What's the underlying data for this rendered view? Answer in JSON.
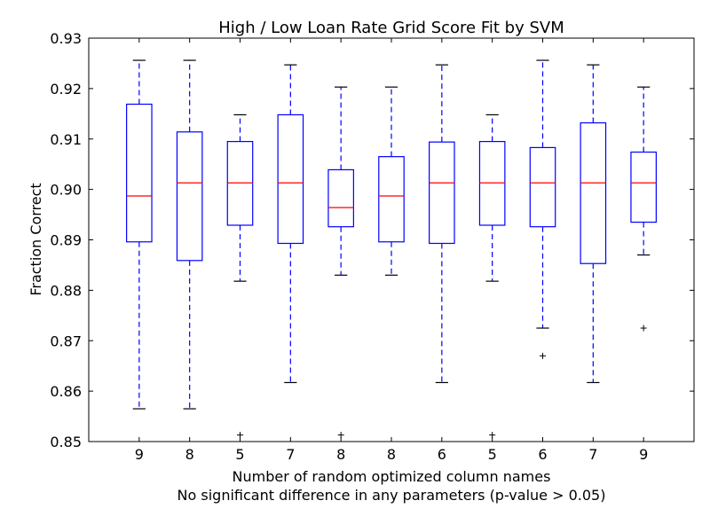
{
  "chart_data": {
    "type": "box",
    "title": "High / Low Loan Rate Grid Score Fit by SVM",
    "xlabel": "Number of random optimized column names",
    "xlabel2": "No significant difference in any parameters (p-value > 0.05)",
    "ylabel": "Fraction Correct",
    "ylim": [
      0.85,
      0.93
    ],
    "yticks": [
      "0.85",
      "0.86",
      "0.87",
      "0.88",
      "0.89",
      "0.90",
      "0.91",
      "0.92",
      "0.93"
    ],
    "categories": [
      "9",
      "8",
      "5",
      "7",
      "8",
      "8",
      "6",
      "5",
      "6",
      "7",
      "9"
    ],
    "boxes": [
      {
        "whislo": 0.8565,
        "q1": 0.8896,
        "med": 0.8987,
        "q3": 0.9169,
        "whishi": 0.9256,
        "fliers": []
      },
      {
        "whislo": 0.8565,
        "q1": 0.8859,
        "med": 0.9013,
        "q3": 0.9114,
        "whishi": 0.9256,
        "fliers": []
      },
      {
        "whislo": 0.8818,
        "q1": 0.8929,
        "med": 0.9013,
        "q3": 0.9095,
        "whishi": 0.9148,
        "fliers": [
          0.8513
        ]
      },
      {
        "whislo": 0.8617,
        "q1": 0.8893,
        "med": 0.9013,
        "q3": 0.9148,
        "whishi": 0.9247,
        "fliers": []
      },
      {
        "whislo": 0.883,
        "q1": 0.8926,
        "med": 0.8964,
        "q3": 0.9039,
        "whishi": 0.9203,
        "fliers": [
          0.8513
        ]
      },
      {
        "whislo": 0.883,
        "q1": 0.8896,
        "med": 0.8987,
        "q3": 0.9065,
        "whishi": 0.9203,
        "fliers": []
      },
      {
        "whislo": 0.8617,
        "q1": 0.8893,
        "med": 0.9013,
        "q3": 0.9094,
        "whishi": 0.9247,
        "fliers": []
      },
      {
        "whislo": 0.8818,
        "q1": 0.8929,
        "med": 0.9013,
        "q3": 0.9095,
        "whishi": 0.9148,
        "fliers": [
          0.8513
        ]
      },
      {
        "whislo": 0.8725,
        "q1": 0.8926,
        "med": 0.9013,
        "q3": 0.9083,
        "whishi": 0.9256,
        "fliers": [
          0.867
        ]
      },
      {
        "whislo": 0.8617,
        "q1": 0.8853,
        "med": 0.9013,
        "q3": 0.9132,
        "whishi": 0.9247,
        "fliers": []
      },
      {
        "whislo": 0.887,
        "q1": 0.8935,
        "med": 0.9013,
        "q3": 0.9074,
        "whishi": 0.9203,
        "fliers": [
          0.8725
        ]
      }
    ],
    "colors": {
      "box": "#0000ff",
      "median": "#ff0000",
      "whisker": "#0000ff",
      "cap": "#000000",
      "flier": "#000000",
      "axes": "#000000"
    },
    "grid": false,
    "legend": "none"
  }
}
